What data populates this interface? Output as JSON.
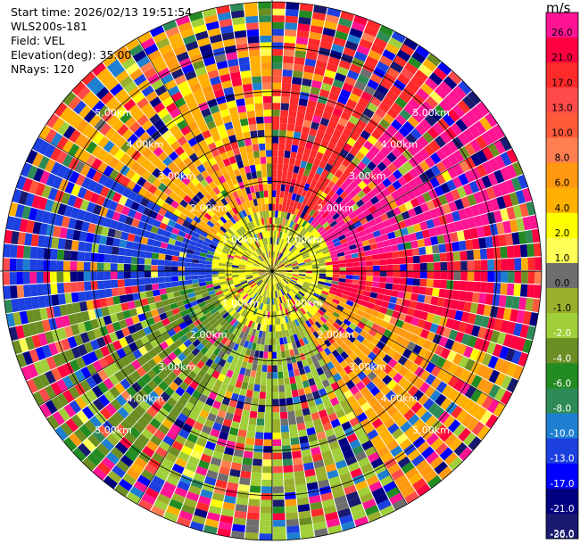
{
  "info": {
    "start_time": "Start time: 2026/02/13 19:51:54",
    "instrument": "WLS200s-181",
    "field": "Field: VEL",
    "elevation": "Elevation(deg): 35.00",
    "nrays": "NRays: 120"
  },
  "colorbar": {
    "unit": "m/s",
    "ticks": [
      "26.0",
      "21.0",
      "17.0",
      "13.0",
      "10.0",
      "8.0",
      "6.0",
      "4.0",
      "2.0",
      "1.0",
      "0.0",
      "-1.0",
      "-2.0",
      "-4.0",
      "-6.0",
      "-8.0",
      "-10.0",
      "-13.0",
      "-17.0",
      "-21.0",
      "-26.0",
      "-30.0"
    ],
    "colors": [
      "#ff1493",
      "#ff0040",
      "#ff2a2a",
      "#ff4a4a",
      "#ff5a3a",
      "#ff7f50",
      "#ff9a10",
      "#ffb000",
      "#ffff00",
      "#ffff55",
      "#6e6e6e",
      "#9ab02c",
      "#a0cf3a",
      "#6b8e23",
      "#228b22",
      "#2e8b57",
      "#1e7fd0",
      "#1c3fe0",
      "#0000ff",
      "#000080",
      "#191970"
    ],
    "tick_color_dark": "#000000",
    "tick_color_light": "#ffffff"
  },
  "chart_data": {
    "type": "heatmap",
    "projection": "polar-ppi",
    "field": "VEL",
    "units": "m/s",
    "n_rays": 120,
    "max_range_km": 6.0,
    "range_rings_km": [
      1.0,
      2.0,
      3.0,
      4.0,
      5.0,
      6.0
    ],
    "ring_labels": [
      "1.00km",
      "2.00km",
      "3.00km",
      "4.00km",
      "5.00km"
    ],
    "colorbar_range": [
      -30.0,
      26.0
    ],
    "sectors": [
      {
        "azimuth_deg": [
          300,
          360
        ],
        "dominant": "yellow",
        "value_ms": 3.0
      },
      {
        "azimuth_deg": [
          0,
          40
        ],
        "dominant": "red/orange",
        "value_ms": 15.0
      },
      {
        "azimuth_deg": [
          40,
          80
        ],
        "dominant": "pink",
        "value_ms": 24.0
      },
      {
        "azimuth_deg": [
          80,
          110
        ],
        "dominant": "red",
        "value_ms": 18.0
      },
      {
        "azimuth_deg": [
          110,
          150
        ],
        "dominant": "yellow/orange",
        "value_ms": 4.0
      },
      {
        "azimuth_deg": [
          150,
          210
        ],
        "dominant": "light green",
        "value_ms": -2.0
      },
      {
        "azimuth_deg": [
          210,
          260
        ],
        "dominant": "green",
        "value_ms": -5.0
      },
      {
        "azimuth_deg": [
          260,
          300
        ],
        "dominant": "blue",
        "value_ms": -15.0
      }
    ],
    "inner_region": {
      "radius_km": [
        0,
        1.4
      ],
      "dominant": "yellow/olive mixed",
      "value_ms": 0.5
    }
  }
}
